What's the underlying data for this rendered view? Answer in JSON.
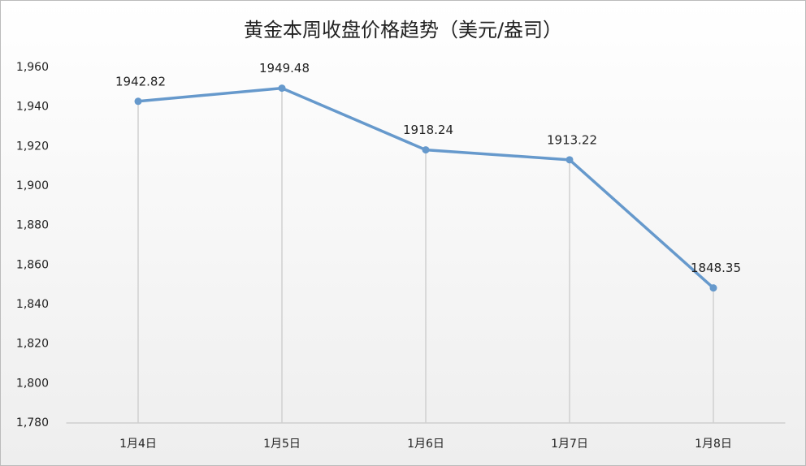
{
  "chart_data": {
    "type": "line",
    "title": "黄金本周收盘价格趋势（美元/盎司）",
    "categories": [
      "1月4日",
      "1月5日",
      "1月6日",
      "1月7日",
      "1月8日"
    ],
    "series": [
      {
        "color": "#6699cc",
        "values": [
          1942.82,
          1949.48,
          1918.24,
          1913.22,
          1848.35
        ]
      }
    ],
    "ylim": [
      1780,
      1960
    ],
    "yticks": [
      {
        "value": 1780,
        "label": "1,780"
      },
      {
        "value": 1800,
        "label": "1,800"
      },
      {
        "value": 1820,
        "label": "1,820"
      },
      {
        "value": 1840,
        "label": "1,840"
      },
      {
        "value": 1860,
        "label": "1,860"
      },
      {
        "value": 1880,
        "label": "1,880"
      },
      {
        "value": 1900,
        "label": "1,900"
      },
      {
        "value": 1920,
        "label": "1,920"
      },
      {
        "value": 1940,
        "label": "1,940"
      },
      {
        "value": 1960,
        "label": "1,960"
      }
    ],
    "grid": false,
    "drop_lines": true
  }
}
